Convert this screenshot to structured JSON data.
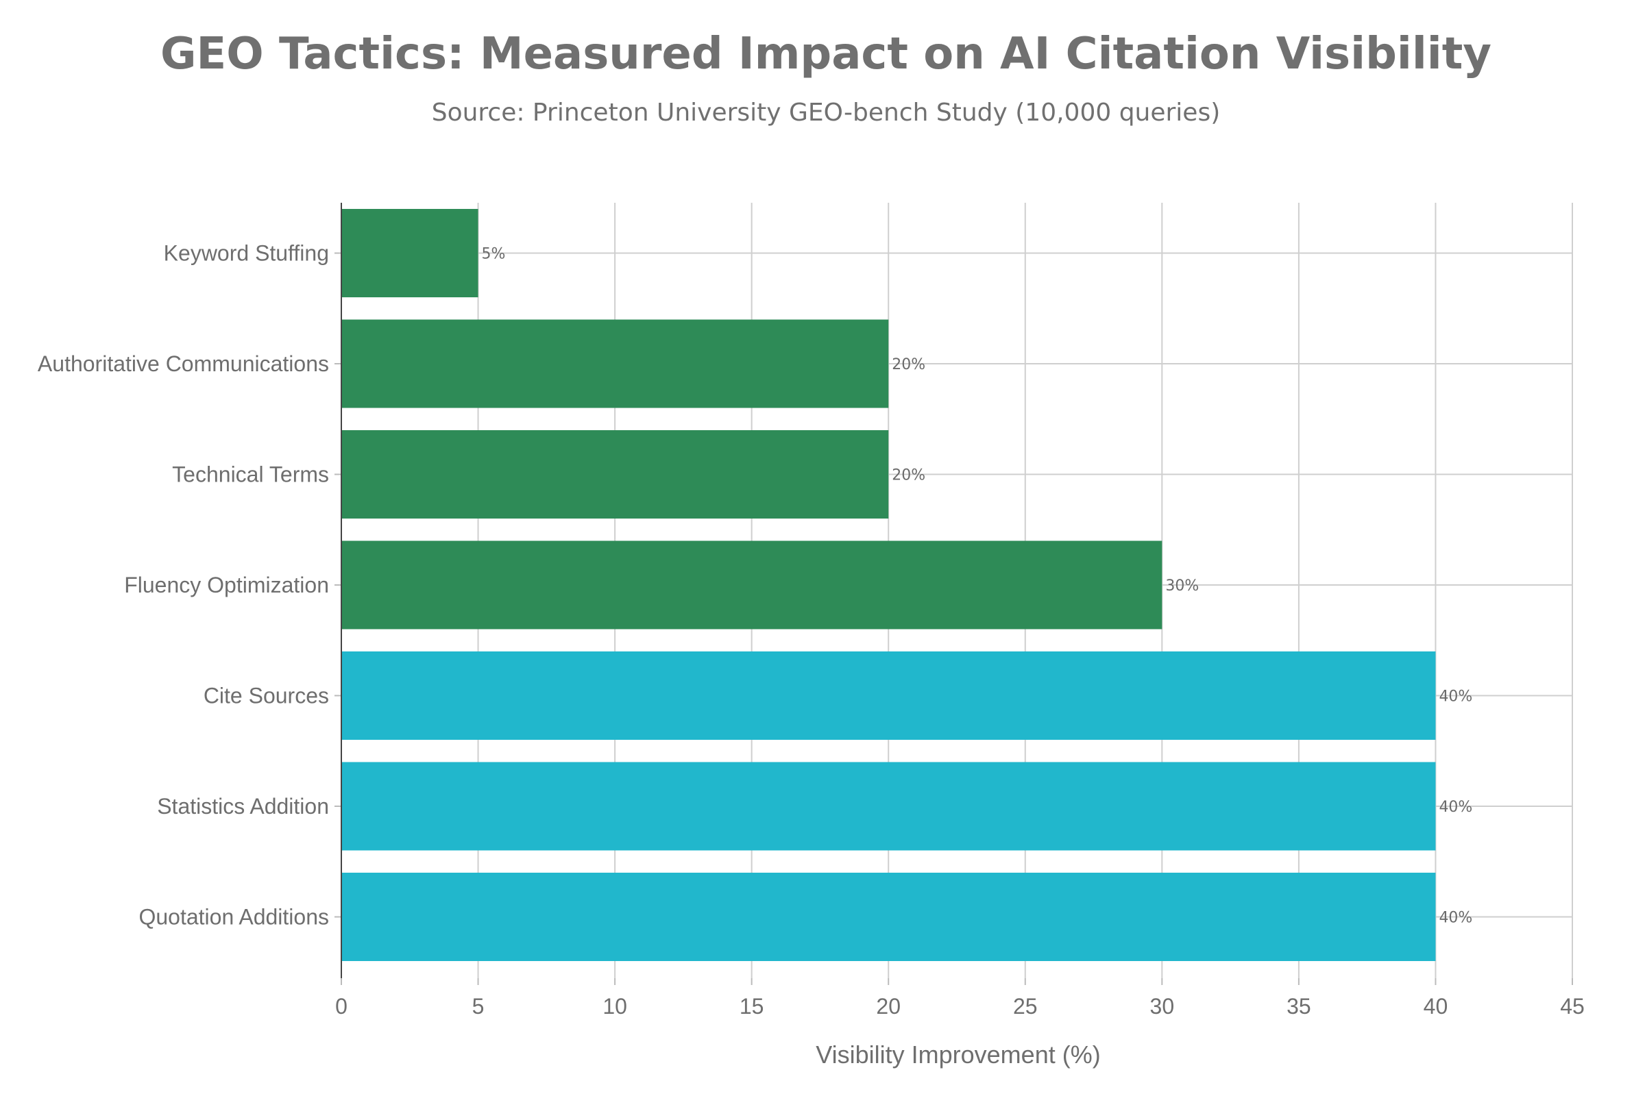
{
  "chart_data": {
    "type": "bar",
    "orientation": "horizontal",
    "title": "GEO Tactics: Measured Impact on AI Citation Visibility",
    "subtitle": "Source: Princeton University GEO-bench Study (10,000 queries)",
    "xlabel": "Visibility Improvement (%)",
    "ylabel": "",
    "xlim": [
      0,
      45
    ],
    "xticks": [
      0,
      5,
      10,
      15,
      20,
      25,
      30,
      35,
      40,
      45
    ],
    "grid": true,
    "categories": [
      "Keyword Stuffing",
      "Authoritative Communications",
      "Technical Terms",
      "Fluency Optimization",
      "Cite Sources",
      "Statistics Addition",
      "Quotation Additions"
    ],
    "values": [
      5,
      20,
      20,
      30,
      40,
      40,
      40
    ],
    "value_labels": [
      "5%",
      "20%",
      "20%",
      "30%",
      "40%",
      "40%",
      "40%"
    ],
    "bar_colors": [
      "#2e8b57",
      "#2e8b57",
      "#2e8b57",
      "#2e8b57",
      "#21b7cc",
      "#21b7cc",
      "#21b7cc"
    ]
  }
}
